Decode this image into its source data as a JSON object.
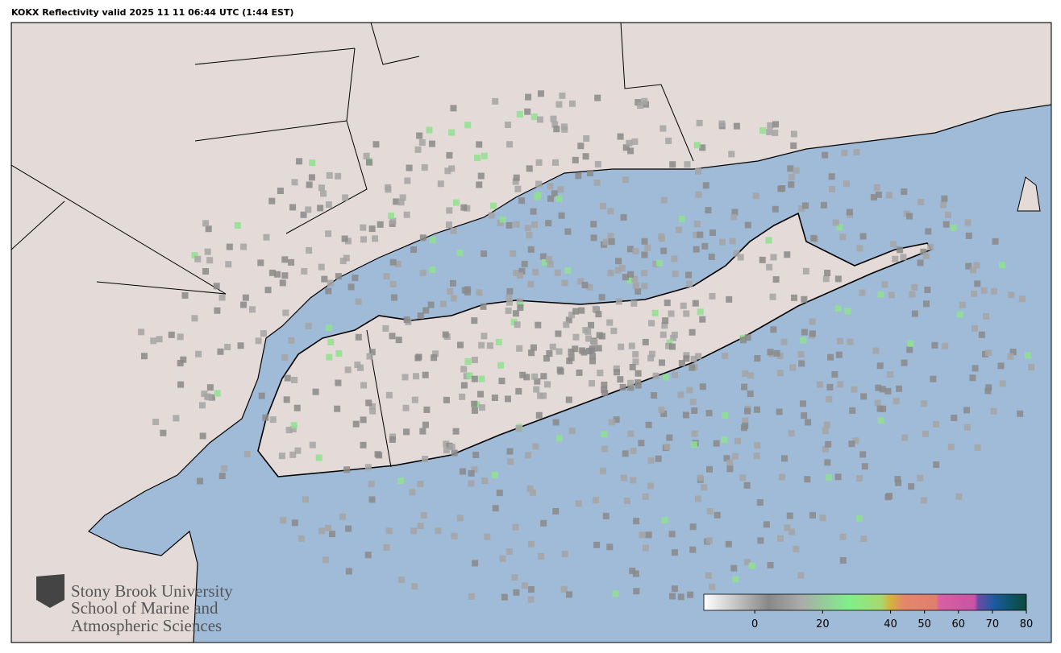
{
  "title": "KOKX Reflectivity valid 2025 11 11 06:44 UTC (1:44 EST)",
  "logo": {
    "lines": [
      "Stony Brook University",
      "School of Marine and",
      "Atmospheric Sciences"
    ]
  },
  "colorbar": {
    "lim": [
      -15,
      80
    ],
    "ticks": [
      0,
      20,
      40,
      50,
      60,
      70,
      80
    ]
  }
}
